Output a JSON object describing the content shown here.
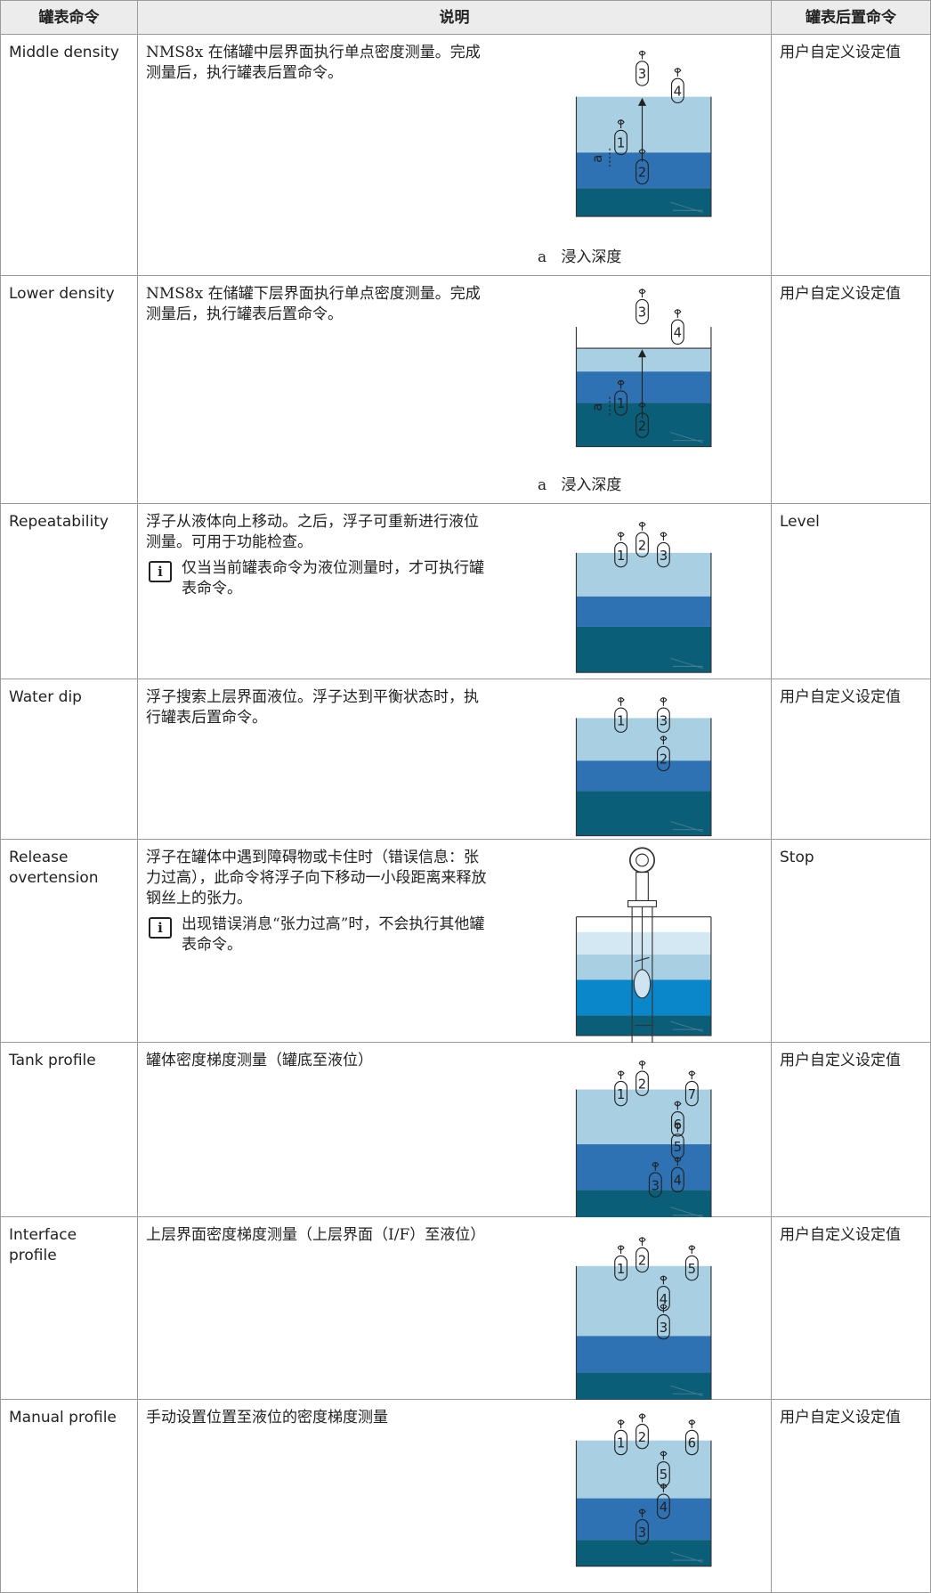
{
  "header": [
    "罐表命令",
    "说明",
    "罐表后置命令"
  ],
  "rows": [
    {
      "command": "Middle density",
      "description": "NMS8x 在储罐中层界面执行单点密度测量。完成测量后，执行罐表后置命令。",
      "floats": [
        "3",
        "4",
        "1",
        "2"
      ],
      "marker": "a",
      "caption_key": "a",
      "caption": "浸入深度",
      "post": "用户自定义设定值"
    },
    {
      "command": "Lower density",
      "description": "NMS8x 在储罐下层界面执行单点密度测量。完成测量后，执行罐表后置命令。",
      "floats": [
        "3",
        "4",
        "1",
        "2"
      ],
      "marker": "a",
      "caption_key": "a",
      "caption": "浸入深度",
      "post": "用户自定义设定值"
    },
    {
      "command": "Repeatability",
      "description": "浮子从液体向上移动。之后，浮子可重新进行液位测量。可用于功能检查。",
      "note_icon": "i",
      "note": "仅当当前罐表命令为液位测量时，才可执行罐表命令。",
      "floats": [
        "1",
        "2",
        "3"
      ],
      "post": "Level"
    },
    {
      "command": "Water dip",
      "description": "浮子搜索上层界面液位。浮子达到平衡状态时，执行罐表后置命令。",
      "floats": [
        "1",
        "3",
        "2"
      ],
      "post": "用户自定义设定值"
    },
    {
      "command": "Release overtension",
      "description": "浮子在罐体中遇到障碍物或卡住时（错误信息：张力过高），此命令将浮子向下移动一小段距离来释放钢丝上的张力。",
      "note_icon": "i",
      "note": "出现错误消息“张力过高”时，不会执行其他罐表命令。",
      "post": "Stop"
    },
    {
      "command": "Tank profile",
      "description": "罐体密度梯度测量（罐底至液位）",
      "floats": [
        "1",
        "2",
        "7",
        "6",
        "5",
        "4",
        "3"
      ],
      "post": "用户自定义设定值"
    },
    {
      "command": "Interface profile",
      "description": "上层界面密度梯度测量（上层界面（I/F）至液位）",
      "floats": [
        "1",
        "2",
        "5",
        "4",
        "3"
      ],
      "post": "用户自定义设定值"
    },
    {
      "command": "Manual profile",
      "description": "手动设置位置至液位的密度梯度测量",
      "floats": [
        "1",
        "2",
        "6",
        "5",
        "4",
        "3"
      ],
      "post": "用户自定义设定值"
    }
  ]
}
